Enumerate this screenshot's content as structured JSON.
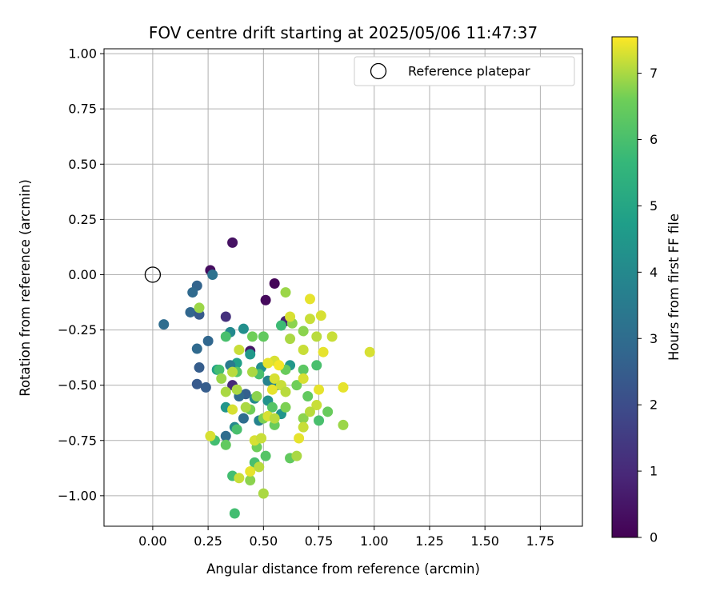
{
  "chart_data": {
    "type": "scatter",
    "title": "FOV centre drift starting at 2025/05/06 11:47:37",
    "xlabel": "Angular distance from reference (arcmin)",
    "ylabel": "Rotation from reference (arcmin)",
    "xlim": [
      -0.22,
      1.94
    ],
    "ylim": [
      -1.138,
      1.022
    ],
    "xticks": [
      0.0,
      0.25,
      0.5,
      0.75,
      1.0,
      1.25,
      1.5,
      1.75
    ],
    "xtick_labels": [
      "0.00",
      "0.25",
      "0.50",
      "0.75",
      "1.00",
      "1.25",
      "1.50",
      "1.75"
    ],
    "yticks": [
      1.0,
      0.75,
      0.5,
      0.25,
      0.0,
      -0.25,
      -0.5,
      -0.75,
      -1.0
    ],
    "ytick_labels": [
      "1.00",
      "0.75",
      "0.50",
      "0.25",
      "0.00",
      "−0.25",
      "−0.50",
      "−0.75",
      "−1.00"
    ],
    "grid": true,
    "legend": {
      "position": "top-right",
      "entries": [
        "Reference platepar"
      ]
    },
    "reference_point": {
      "x": 0.0,
      "y": 0.0
    },
    "colorbar": {
      "label": "Hours from first FF file",
      "colormap": "viridis",
      "range": [
        0,
        7.55
      ],
      "ticks": [
        0,
        1,
        2,
        3,
        4,
        5,
        6,
        7
      ],
      "tick_labels": [
        "0",
        "1",
        "2",
        "3",
        "4",
        "5",
        "6",
        "7"
      ]
    },
    "series": [
      {
        "points": [
          {
            "x": 0.36,
            "y": 0.145,
            "h": 0.4
          },
          {
            "x": 0.26,
            "y": 0.02,
            "h": 0.3
          },
          {
            "x": 0.55,
            "y": -0.04,
            "h": 0.1
          },
          {
            "x": 0.51,
            "y": -0.115,
            "h": 0.2
          },
          {
            "x": 0.33,
            "y": -0.19,
            "h": 1.2
          },
          {
            "x": 0.6,
            "y": -0.21,
            "h": 0.8
          },
          {
            "x": 0.44,
            "y": -0.345,
            "h": 0.5
          },
          {
            "x": 0.36,
            "y": -0.5,
            "h": 1.0
          },
          {
            "x": 0.27,
            "y": -0.0,
            "h": 3.2
          },
          {
            "x": 0.2,
            "y": -0.05,
            "h": 2.7
          },
          {
            "x": 0.18,
            "y": -0.08,
            "h": 2.9
          },
          {
            "x": 0.17,
            "y": -0.17,
            "h": 2.8
          },
          {
            "x": 0.21,
            "y": -0.18,
            "h": 2.4
          },
          {
            "x": 0.05,
            "y": -0.225,
            "h": 3.0
          },
          {
            "x": 0.25,
            "y": -0.3,
            "h": 2.8
          },
          {
            "x": 0.2,
            "y": -0.335,
            "h": 2.9
          },
          {
            "x": 0.21,
            "y": -0.42,
            "h": 2.5
          },
          {
            "x": 0.2,
            "y": -0.495,
            "h": 2.4
          },
          {
            "x": 0.24,
            "y": -0.51,
            "h": 2.5
          },
          {
            "x": 0.33,
            "y": -0.73,
            "h": 3.0
          },
          {
            "x": 0.35,
            "y": -0.26,
            "h": 4.0
          },
          {
            "x": 0.41,
            "y": -0.245,
            "h": 4.2
          },
          {
            "x": 0.44,
            "y": -0.36,
            "h": 4.5
          },
          {
            "x": 0.38,
            "y": -0.4,
            "h": 4.8
          },
          {
            "x": 0.35,
            "y": -0.41,
            "h": 3.5
          },
          {
            "x": 0.42,
            "y": -0.54,
            "h": 2.6
          },
          {
            "x": 0.39,
            "y": -0.55,
            "h": 2.9
          },
          {
            "x": 0.46,
            "y": -0.56,
            "h": 4.0
          },
          {
            "x": 0.52,
            "y": -0.57,
            "h": 4.3
          },
          {
            "x": 0.33,
            "y": -0.6,
            "h": 4.4
          },
          {
            "x": 0.41,
            "y": -0.65,
            "h": 3.0
          },
          {
            "x": 0.37,
            "y": -0.69,
            "h": 4.0
          },
          {
            "x": 0.48,
            "y": -0.66,
            "h": 3.8
          },
          {
            "x": 0.29,
            "y": -0.43,
            "h": 4.8
          },
          {
            "x": 0.49,
            "y": -0.42,
            "h": 4.2
          },
          {
            "x": 0.52,
            "y": -0.48,
            "h": 3.8
          },
          {
            "x": 0.56,
            "y": -0.5,
            "h": 4.0
          },
          {
            "x": 0.58,
            "y": -0.63,
            "h": 4.4
          },
          {
            "x": 0.62,
            "y": -0.41,
            "h": 4.5
          },
          {
            "x": 0.58,
            "y": -0.23,
            "h": 5.8
          },
          {
            "x": 0.6,
            "y": -0.08,
            "h": 6.9
          },
          {
            "x": 0.33,
            "y": -0.28,
            "h": 6.0
          },
          {
            "x": 0.3,
            "y": -0.43,
            "h": 5.9
          },
          {
            "x": 0.38,
            "y": -0.44,
            "h": 6.2
          },
          {
            "x": 0.45,
            "y": -0.28,
            "h": 6.6
          },
          {
            "x": 0.5,
            "y": -0.28,
            "h": 6.4
          },
          {
            "x": 0.48,
            "y": -0.45,
            "h": 6.0
          },
          {
            "x": 0.6,
            "y": -0.43,
            "h": 6.5
          },
          {
            "x": 0.68,
            "y": -0.43,
            "h": 6.3
          },
          {
            "x": 0.74,
            "y": -0.41,
            "h": 6.0
          },
          {
            "x": 0.63,
            "y": -0.22,
            "h": 6.8
          },
          {
            "x": 0.68,
            "y": -0.255,
            "h": 6.8
          },
          {
            "x": 0.65,
            "y": -0.5,
            "h": 6.6
          },
          {
            "x": 0.7,
            "y": -0.55,
            "h": 6.4
          },
          {
            "x": 0.54,
            "y": -0.6,
            "h": 6.2
          },
          {
            "x": 0.6,
            "y": -0.6,
            "h": 6.7
          },
          {
            "x": 0.47,
            "y": -0.55,
            "h": 6.8
          },
          {
            "x": 0.44,
            "y": -0.61,
            "h": 6.6
          },
          {
            "x": 0.5,
            "y": -0.65,
            "h": 6.7
          },
          {
            "x": 0.55,
            "y": -0.68,
            "h": 6.5
          },
          {
            "x": 0.68,
            "y": -0.65,
            "h": 6.8
          },
          {
            "x": 0.75,
            "y": -0.66,
            "h": 6.0
          },
          {
            "x": 0.79,
            "y": -0.62,
            "h": 6.5
          },
          {
            "x": 0.86,
            "y": -0.68,
            "h": 6.9
          },
          {
            "x": 0.38,
            "y": -0.7,
            "h": 6.0
          },
          {
            "x": 0.28,
            "y": -0.75,
            "h": 5.9
          },
          {
            "x": 0.33,
            "y": -0.77,
            "h": 6.4
          },
          {
            "x": 0.47,
            "y": -0.78,
            "h": 6.6
          },
          {
            "x": 0.51,
            "y": -0.82,
            "h": 6.2
          },
          {
            "x": 0.46,
            "y": -0.85,
            "h": 6.0
          },
          {
            "x": 0.36,
            "y": -0.91,
            "h": 5.9
          },
          {
            "x": 0.44,
            "y": -0.93,
            "h": 6.8
          },
          {
            "x": 0.5,
            "y": -0.99,
            "h": 7.0
          },
          {
            "x": 0.37,
            "y": -1.08,
            "h": 5.9
          },
          {
            "x": 0.62,
            "y": -0.83,
            "h": 6.4
          },
          {
            "x": 0.65,
            "y": -0.82,
            "h": 7.0
          },
          {
            "x": 0.21,
            "y": -0.15,
            "h": 6.9
          },
          {
            "x": 0.71,
            "y": -0.11,
            "h": 7.4
          },
          {
            "x": 0.62,
            "y": -0.19,
            "h": 7.3
          },
          {
            "x": 0.71,
            "y": -0.2,
            "h": 7.2
          },
          {
            "x": 0.76,
            "y": -0.185,
            "h": 7.3
          },
          {
            "x": 0.74,
            "y": -0.28,
            "h": 7.1
          },
          {
            "x": 0.81,
            "y": -0.28,
            "h": 7.2
          },
          {
            "x": 0.98,
            "y": -0.35,
            "h": 7.3
          },
          {
            "x": 0.77,
            "y": -0.35,
            "h": 7.4
          },
          {
            "x": 0.68,
            "y": -0.34,
            "h": 7.2
          },
          {
            "x": 0.62,
            "y": -0.29,
            "h": 7.0
          },
          {
            "x": 0.55,
            "y": -0.39,
            "h": 7.3
          },
          {
            "x": 0.52,
            "y": -0.4,
            "h": 7.4
          },
          {
            "x": 0.57,
            "y": -0.41,
            "h": 7.5
          },
          {
            "x": 0.39,
            "y": -0.34,
            "h": 7.2
          },
          {
            "x": 0.36,
            "y": -0.44,
            "h": 7.1
          },
          {
            "x": 0.45,
            "y": -0.44,
            "h": 7.0
          },
          {
            "x": 0.31,
            "y": -0.47,
            "h": 6.9
          },
          {
            "x": 0.38,
            "y": -0.52,
            "h": 7.0
          },
          {
            "x": 0.33,
            "y": -0.53,
            "h": 7.0
          },
          {
            "x": 0.55,
            "y": -0.47,
            "h": 7.3
          },
          {
            "x": 0.58,
            "y": -0.5,
            "h": 7.2
          },
          {
            "x": 0.54,
            "y": -0.52,
            "h": 7.4
          },
          {
            "x": 0.6,
            "y": -0.53,
            "h": 7.1
          },
          {
            "x": 0.68,
            "y": -0.47,
            "h": 7.3
          },
          {
            "x": 0.75,
            "y": -0.52,
            "h": 7.4
          },
          {
            "x": 0.86,
            "y": -0.51,
            "h": 7.4
          },
          {
            "x": 0.74,
            "y": -0.59,
            "h": 7.2
          },
          {
            "x": 0.71,
            "y": -0.62,
            "h": 7.1
          },
          {
            "x": 0.68,
            "y": -0.69,
            "h": 7.2
          },
          {
            "x": 0.66,
            "y": -0.74,
            "h": 7.4
          },
          {
            "x": 0.42,
            "y": -0.6,
            "h": 7.0
          },
          {
            "x": 0.36,
            "y": -0.61,
            "h": 7.3
          },
          {
            "x": 0.26,
            "y": -0.73,
            "h": 7.3
          },
          {
            "x": 0.46,
            "y": -0.75,
            "h": 7.3
          },
          {
            "x": 0.49,
            "y": -0.74,
            "h": 7.2
          },
          {
            "x": 0.52,
            "y": -0.64,
            "h": 7.3
          },
          {
            "x": 0.55,
            "y": -0.65,
            "h": 7.1
          },
          {
            "x": 0.44,
            "y": -0.89,
            "h": 7.4
          },
          {
            "x": 0.39,
            "y": -0.92,
            "h": 7.2
          },
          {
            "x": 0.48,
            "y": -0.87,
            "h": 7.1
          }
        ]
      }
    ]
  }
}
